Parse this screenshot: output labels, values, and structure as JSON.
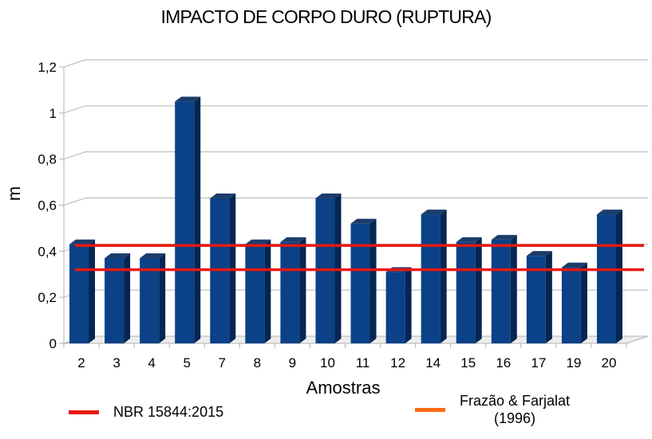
{
  "chart_data": {
    "type": "bar",
    "title": "IMPACTO DE CORPO DURO (RUPTURA)",
    "xlabel": "Amostras",
    "ylabel": "m",
    "ylim": [
      0,
      1.2
    ],
    "y_ticks": [
      "0",
      "0,2",
      "0,4",
      "0,6",
      "0,8",
      "1",
      "1,2"
    ],
    "grid": true,
    "categories": [
      "2",
      "3",
      "4",
      "5",
      "7",
      "8",
      "9",
      "10",
      "11",
      "12",
      "14",
      "15",
      "16",
      "17",
      "19",
      "20"
    ],
    "series": [
      {
        "name": "Amostras",
        "color": "#0a4187",
        "values": [
          0.43,
          0.37,
          0.37,
          1.05,
          0.63,
          0.43,
          0.44,
          0.63,
          0.52,
          0.31,
          0.56,
          0.44,
          0.45,
          0.38,
          0.33,
          0.56
        ]
      }
    ],
    "reference_lines": [
      {
        "name": "NBR 15844:2015",
        "value": 0.32,
        "color": "#e8190f"
      },
      {
        "name": "Frazão & Farjalat (1996)",
        "value": 0.425,
        "color": "#ff6a13"
      }
    ],
    "legend": {
      "position": "bottom",
      "entries": [
        {
          "label": "NBR 15844:2015",
          "color": "#e8190f"
        },
        {
          "label_line1": "Frazão & Farjalat",
          "label_line2": "(1996)",
          "color": "#ff6a13"
        }
      ]
    }
  }
}
